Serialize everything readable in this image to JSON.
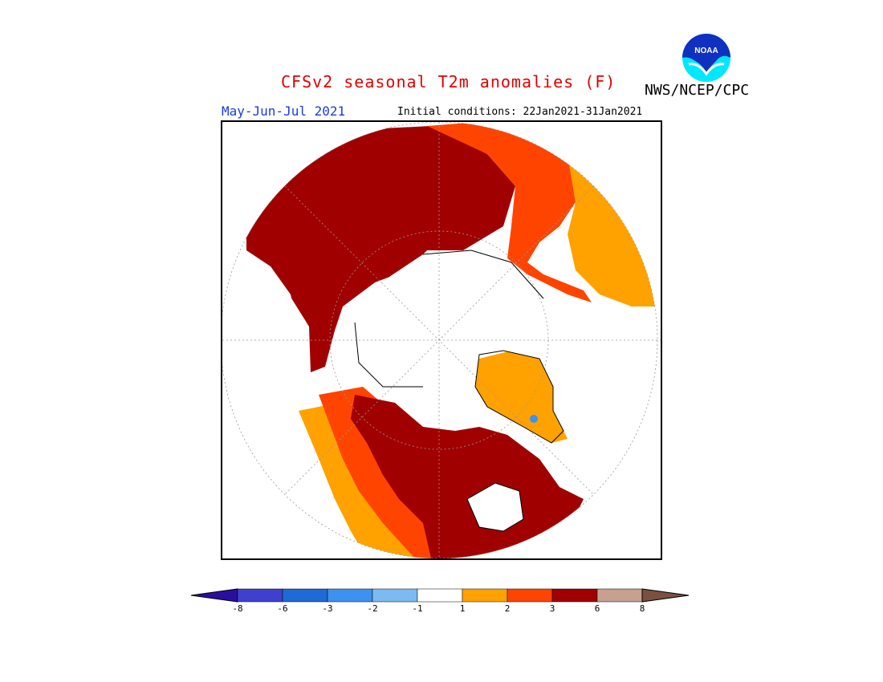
{
  "header": {
    "title": "CFSv2 seasonal T2m anomalies (F)",
    "agency": "NWS/NCEP/CPC",
    "logo_text": "NOAA",
    "period": "May-Jun-Jul 2021",
    "initial_conditions": "Initial conditions: 22Jan2021-31Jan2021"
  },
  "map": {
    "projection": "north-polar-stereographic",
    "variable": "2m temperature anomaly",
    "units": "F"
  },
  "legend": {
    "ticks": [
      "-8",
      "-6",
      "-3",
      "-2",
      "-1",
      "1",
      "2",
      "3",
      "6",
      "8"
    ],
    "colors": [
      "#2a0ea0",
      "#4040d0",
      "#1e6ad8",
      "#3c92ee",
      "#7cbaf2",
      "#ffffff",
      "#ffa200",
      "#ff4400",
      "#a00000",
      "#c8a090",
      "#7a5040"
    ]
  }
}
